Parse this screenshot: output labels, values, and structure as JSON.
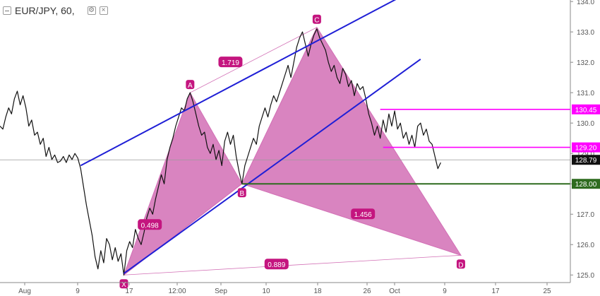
{
  "header": {
    "symbol": "EUR/JPY",
    "interval": "60",
    "icons": [
      "collapse-icon",
      "settings-icon",
      "close-icon"
    ]
  },
  "chart_data": {
    "type": "line",
    "title": "EUR/JPY, 60,",
    "xlabel": "",
    "ylabel": "",
    "ylim": [
      124.75,
      134.05
    ],
    "y_ticks": [
      125.0,
      126.0,
      127.0,
      128.0,
      129.0,
      130.0,
      131.0,
      132.0,
      133.0,
      134.0
    ],
    "x_ticks": [
      "Aug",
      "9",
      "17",
      "12:00",
      "Sep",
      "10",
      "18",
      "26",
      "Oct",
      "9",
      "17",
      "25"
    ],
    "grid": false,
    "colors": {
      "price": "#111111",
      "pattern_fill": "#d26fb5",
      "channel": "#1f1fd6",
      "level_magenta": "#ff00ff",
      "level_green": "#2e6b1f",
      "label_bg": "#c4157f",
      "last_price_bg": "#111111"
    },
    "price_path": [
      [
        0,
        129.9
      ],
      [
        1,
        129.8
      ],
      [
        2,
        130.2
      ],
      [
        3,
        130.5
      ],
      [
        4,
        130.3
      ],
      [
        5,
        130.8
      ],
      [
        6,
        131.05
      ],
      [
        7,
        130.6
      ],
      [
        8,
        130.9
      ],
      [
        9,
        130.5
      ],
      [
        10,
        129.9
      ],
      [
        11,
        130.1
      ],
      [
        12,
        129.6
      ],
      [
        13,
        129.7
      ],
      [
        14,
        129.3
      ],
      [
        15,
        129.5
      ],
      [
        16,
        128.9
      ],
      [
        17,
        129.2
      ],
      [
        18,
        128.8
      ],
      [
        19,
        128.95
      ],
      [
        20,
        128.7
      ],
      [
        21,
        128.75
      ],
      [
        22,
        128.9
      ],
      [
        23,
        128.7
      ],
      [
        24,
        128.95
      ],
      [
        25,
        128.8
      ],
      [
        26,
        129.0
      ],
      [
        27,
        128.85
      ],
      [
        28,
        128.5
      ],
      [
        29,
        127.9
      ],
      [
        30,
        127.3
      ],
      [
        31,
        126.8
      ],
      [
        32,
        126.3
      ],
      [
        33,
        125.6
      ],
      [
        34,
        125.2
      ],
      [
        35,
        125.8
      ],
      [
        36,
        125.4
      ],
      [
        37,
        126.2
      ],
      [
        38,
        126.0
      ],
      [
        39,
        125.5
      ],
      [
        40,
        125.9
      ],
      [
        41,
        125.45
      ],
      [
        42,
        125.7
      ],
      [
        43,
        125.0
      ],
      [
        44,
        125.8
      ],
      [
        45,
        126.1
      ],
      [
        46,
        125.9
      ],
      [
        47,
        126.5
      ],
      [
        48,
        126.2
      ],
      [
        49,
        126.0
      ],
      [
        50,
        126.4
      ],
      [
        51,
        126.9
      ],
      [
        52,
        127.2
      ],
      [
        53,
        127.0
      ],
      [
        54,
        127.5
      ],
      [
        55,
        127.9
      ],
      [
        56,
        128.3
      ],
      [
        57,
        128.0
      ],
      [
        58,
        128.8
      ],
      [
        59,
        129.2
      ],
      [
        60,
        129.5
      ],
      [
        61,
        129.9
      ],
      [
        62,
        130.2
      ],
      [
        63,
        130.5
      ],
      [
        64,
        130.4
      ],
      [
        65,
        130.8
      ],
      [
        66,
        131.0
      ],
      [
        67,
        130.7
      ],
      [
        68,
        130.3
      ],
      [
        69,
        129.9
      ],
      [
        70,
        129.6
      ],
      [
        71,
        129.7
      ],
      [
        72,
        129.2
      ],
      [
        73,
        129.0
      ],
      [
        74,
        129.3
      ],
      [
        75,
        128.8
      ],
      [
        76,
        129.1
      ],
      [
        77,
        128.6
      ],
      [
        78,
        129.4
      ],
      [
        79,
        129.7
      ],
      [
        80,
        129.3
      ],
      [
        81,
        129.6
      ],
      [
        82,
        128.9
      ],
      [
        83,
        128.4
      ],
      [
        84,
        128.0
      ],
      [
        85,
        128.6
      ],
      [
        86,
        128.9
      ],
      [
        87,
        129.2
      ],
      [
        88,
        129.5
      ],
      [
        89,
        129.3
      ],
      [
        90,
        129.9
      ],
      [
        91,
        130.2
      ],
      [
        92,
        130.5
      ],
      [
        93,
        130.2
      ],
      [
        94,
        130.6
      ],
      [
        95,
        130.9
      ],
      [
        96,
        130.7
      ],
      [
        97,
        131.0
      ],
      [
        98,
        131.3
      ],
      [
        99,
        131.6
      ],
      [
        100,
        131.9
      ],
      [
        101,
        131.5
      ],
      [
        102,
        132.0
      ],
      [
        103,
        132.5
      ],
      [
        104,
        132.8
      ],
      [
        105,
        133.0
      ],
      [
        106,
        132.6
      ],
      [
        107,
        132.2
      ],
      [
        108,
        132.6
      ],
      [
        109,
        132.9
      ],
      [
        110,
        133.1
      ],
      [
        111,
        132.8
      ],
      [
        112,
        132.6
      ],
      [
        113,
        132.4
      ],
      [
        114,
        132.0
      ],
      [
        115,
        131.7
      ],
      [
        116,
        131.9
      ],
      [
        117,
        131.5
      ],
      [
        118,
        131.3
      ],
      [
        119,
        131.8
      ],
      [
        120,
        131.6
      ],
      [
        121,
        131.2
      ],
      [
        122,
        131.4
      ],
      [
        123,
        130.9
      ],
      [
        124,
        131.3
      ],
      [
        125,
        131.1
      ],
      [
        126,
        131.2
      ],
      [
        127,
        130.8
      ],
      [
        128,
        130.3
      ],
      [
        129,
        130.0
      ],
      [
        130,
        129.6
      ],
      [
        131,
        129.9
      ],
      [
        132,
        129.5
      ],
      [
        133,
        130.1
      ],
      [
        134,
        129.7
      ],
      [
        135,
        130.3
      ],
      [
        136,
        129.9
      ],
      [
        137,
        130.4
      ],
      [
        138,
        129.8
      ],
      [
        139,
        130.0
      ],
      [
        140,
        129.5
      ],
      [
        141,
        129.7
      ],
      [
        142,
        129.3
      ],
      [
        143,
        129.6
      ],
      [
        144,
        129.2
      ],
      [
        145,
        129.9
      ],
      [
        146,
        130.0
      ],
      [
        147,
        129.6
      ],
      [
        148,
        129.8
      ],
      [
        149,
        129.4
      ],
      [
        150,
        129.3
      ],
      [
        151,
        128.9
      ],
      [
        152,
        128.5
      ],
      [
        153,
        128.7
      ]
    ],
    "channel_lines": [
      {
        "from": [
          43,
          125.05
        ],
        "to": [
          146,
          132.1
        ]
      },
      {
        "from": [
          28,
          128.6
        ],
        "to": [
          138,
          134.1
        ]
      }
    ],
    "pattern": {
      "points": [
        {
          "label": "X",
          "x": 43,
          "y": 125.0
        },
        {
          "label": "A",
          "x": 66,
          "y": 131.0
        },
        {
          "label": "B",
          "x": 84,
          "y": 128.0
        },
        {
          "label": "C",
          "x": 110,
          "y": 133.15
        },
        {
          "label": "D",
          "x": 160,
          "y": 125.65
        }
      ],
      "ratios": [
        {
          "label": "0.498",
          "x": 52,
          "y": 126.65
        },
        {
          "label": "1.456",
          "x": 126,
          "y": 127.0
        },
        {
          "label": "0.889",
          "x": 96,
          "y": 125.35
        },
        {
          "label": "1.719",
          "x": 80,
          "y": 132.0
        }
      ]
    },
    "levels": [
      {
        "value": 130.45,
        "label": "130.45",
        "color": "#ff00ff",
        "from_x": 132
      },
      {
        "value": 129.2,
        "label": "129.20",
        "color": "#ff00ff",
        "from_x": 133
      },
      {
        "value": 128.0,
        "label": "128.00",
        "color": "#2e6b1f",
        "from_x": 84
      }
    ],
    "last_price": {
      "value": 128.79,
      "label": "128.79"
    }
  }
}
